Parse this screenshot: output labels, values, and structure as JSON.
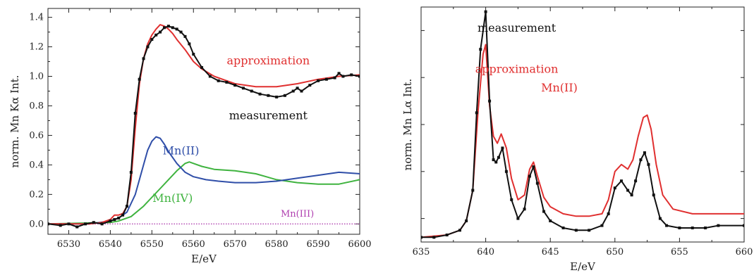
{
  "chart_data": [
    {
      "type": "line",
      "title": "",
      "xlabel": "E/eV",
      "ylabel": "norm. Mn Kα Int.",
      "xlim": [
        6525,
        6600
      ],
      "ylim": [
        -0.07,
        1.46
      ],
      "xticks": [
        "6530",
        "6540",
        "6550",
        "6560",
        "6570",
        "6580",
        "6590",
        "6600"
      ],
      "yticks": [
        "0.0",
        "0.2",
        "0.4",
        "0.6",
        "0.8",
        "1.0",
        "1.2",
        "1.4"
      ],
      "grid": false,
      "series": [
        {
          "name": "measurement",
          "color": "#111111",
          "markers": true,
          "x": [
            6525,
            6528,
            6530,
            6532,
            6534,
            6536,
            6538,
            6540,
            6541,
            6542,
            6543,
            6544,
            6545,
            6546,
            6547,
            6548,
            6549,
            6550,
            6551,
            6552,
            6553,
            6554,
            6555,
            6556,
            6557,
            6558,
            6559,
            6560,
            6562,
            6564,
            6566,
            6568,
            6570,
            6572,
            6574,
            6576,
            6578,
            6580,
            6582,
            6584,
            6585,
            6586,
            6588,
            6590,
            6592,
            6594,
            6595,
            6596,
            6598,
            6600
          ],
          "y": [
            0.0,
            -0.01,
            0.0,
            -0.02,
            0.0,
            0.01,
            0.0,
            0.02,
            0.03,
            0.04,
            0.06,
            0.12,
            0.35,
            0.75,
            0.98,
            1.12,
            1.2,
            1.25,
            1.28,
            1.3,
            1.33,
            1.34,
            1.33,
            1.32,
            1.3,
            1.27,
            1.22,
            1.15,
            1.06,
            1.0,
            0.97,
            0.96,
            0.94,
            0.92,
            0.9,
            0.88,
            0.87,
            0.86,
            0.87,
            0.9,
            0.92,
            0.9,
            0.94,
            0.97,
            0.98,
            0.99,
            1.02,
            1.0,
            1.01,
            1.0
          ]
        },
        {
          "name": "approximation",
          "color": "#e03030",
          "markers": false,
          "x": [
            6525,
            6530,
            6535,
            6538,
            6540,
            6541,
            6542,
            6543,
            6544,
            6545,
            6546,
            6547,
            6548,
            6549,
            6550,
            6551,
            6552,
            6553,
            6554,
            6555,
            6556,
            6558,
            6560,
            6562,
            6565,
            6568,
            6570,
            6575,
            6580,
            6585,
            6590,
            6595,
            6600
          ],
          "y": [
            0.0,
            0.0,
            0.0,
            0.01,
            0.03,
            0.06,
            0.06,
            0.07,
            0.12,
            0.3,
            0.65,
            0.95,
            1.12,
            1.22,
            1.28,
            1.32,
            1.35,
            1.34,
            1.32,
            1.29,
            1.25,
            1.18,
            1.1,
            1.05,
            1.0,
            0.97,
            0.95,
            0.93,
            0.93,
            0.95,
            0.98,
            1.0,
            1.01
          ]
        },
        {
          "name": "Mn(II)",
          "color": "#2f4ea8",
          "markers": false,
          "x": [
            6525,
            6535,
            6540,
            6542,
            6544,
            6546,
            6548,
            6549,
            6550,
            6551,
            6552,
            6553,
            6554,
            6556,
            6558,
            6560,
            6563,
            6566,
            6570,
            6575,
            6580,
            6585,
            6590,
            6595,
            6600
          ],
          "y": [
            0.0,
            0.0,
            0.02,
            0.04,
            0.08,
            0.2,
            0.4,
            0.5,
            0.56,
            0.59,
            0.58,
            0.54,
            0.49,
            0.41,
            0.35,
            0.32,
            0.3,
            0.29,
            0.28,
            0.28,
            0.29,
            0.31,
            0.33,
            0.35,
            0.34
          ]
        },
        {
          "name": "Mn(IV)",
          "color": "#3fb33f",
          "markers": false,
          "x": [
            6525,
            6540,
            6542,
            6545,
            6548,
            6550,
            6552,
            6554,
            6556,
            6558,
            6559,
            6560,
            6562,
            6565,
            6570,
            6575,
            6580,
            6585,
            6590,
            6595,
            6600
          ],
          "y": [
            0.0,
            0.01,
            0.02,
            0.05,
            0.12,
            0.18,
            0.24,
            0.3,
            0.36,
            0.41,
            0.42,
            0.41,
            0.39,
            0.37,
            0.36,
            0.34,
            0.3,
            0.28,
            0.27,
            0.27,
            0.3
          ]
        },
        {
          "name": "Mn(III)",
          "color": "#b040b0",
          "markers": false,
          "dotted": true,
          "x": [
            6525,
            6600
          ],
          "y": [
            0.0,
            0.0
          ]
        }
      ],
      "annotations": [
        {
          "text": "approximation",
          "color": "#e03030",
          "x": 6578,
          "y": 1.08
        },
        {
          "text": "measurement",
          "color": "#111111",
          "x": 6578,
          "y": 0.71
        },
        {
          "text": "Mn(II)",
          "color": "#2f4ea8",
          "x": 6557,
          "y": 0.47
        },
        {
          "text": "Mn(IV)",
          "color": "#3fb33f",
          "x": 6555,
          "y": 0.15
        },
        {
          "text": "Mn(III)",
          "color": "#b040b0",
          "x": 6585,
          "y": 0.05
        }
      ]
    },
    {
      "type": "line",
      "title": "",
      "xlabel": "E/eV",
      "ylabel": "norm. Mn Lα Int.",
      "xlim": [
        635,
        660
      ],
      "ylim": [
        0,
        1.0
      ],
      "xticks": [
        "635",
        "640",
        "645",
        "650",
        "655",
        "660"
      ],
      "yticks": [],
      "grid": false,
      "series": [
        {
          "name": "measurement",
          "color": "#111111",
          "markers": true,
          "x": [
            635,
            636,
            637,
            638,
            638.5,
            639,
            639.3,
            639.6,
            640,
            640.3,
            640.6,
            640.8,
            641,
            641.3,
            641.6,
            642,
            642.5,
            643,
            643.4,
            643.7,
            644,
            644.5,
            645,
            646,
            647,
            648,
            649,
            649.5,
            650,
            650.5,
            651,
            651.3,
            651.6,
            652,
            652.3,
            652.6,
            653,
            653.5,
            654,
            655,
            656,
            657,
            658,
            660
          ],
          "y": [
            0.02,
            0.02,
            0.03,
            0.05,
            0.09,
            0.22,
            0.55,
            0.82,
            0.98,
            0.6,
            0.35,
            0.34,
            0.36,
            0.4,
            0.3,
            0.18,
            0.1,
            0.14,
            0.28,
            0.32,
            0.25,
            0.13,
            0.09,
            0.06,
            0.05,
            0.05,
            0.07,
            0.12,
            0.23,
            0.26,
            0.22,
            0.2,
            0.26,
            0.35,
            0.38,
            0.33,
            0.2,
            0.1,
            0.07,
            0.06,
            0.06,
            0.06,
            0.07,
            0.07
          ]
        },
        {
          "name": "approximation",
          "color": "#e03030",
          "markers": false,
          "x": [
            635,
            637,
            638,
            638.5,
            639,
            639.4,
            639.8,
            640,
            640.3,
            640.6,
            640.9,
            641.2,
            641.6,
            642,
            642.5,
            643,
            643.4,
            643.7,
            644,
            644.5,
            645,
            646,
            647,
            648,
            649,
            649.5,
            650,
            650.5,
            651,
            651.4,
            651.8,
            652.2,
            652.5,
            652.8,
            653.2,
            653.7,
            654.5,
            656,
            658,
            660
          ],
          "y": [
            0.02,
            0.03,
            0.05,
            0.09,
            0.22,
            0.55,
            0.8,
            0.84,
            0.58,
            0.45,
            0.42,
            0.46,
            0.4,
            0.27,
            0.18,
            0.2,
            0.31,
            0.34,
            0.28,
            0.19,
            0.15,
            0.12,
            0.11,
            0.11,
            0.12,
            0.18,
            0.3,
            0.33,
            0.31,
            0.35,
            0.45,
            0.53,
            0.54,
            0.48,
            0.33,
            0.2,
            0.14,
            0.12,
            0.12,
            0.12
          ]
        }
      ],
      "annotations": [
        {
          "text": "measurement",
          "color": "#111111",
          "x": 642.4,
          "y": 0.895
        },
        {
          "text": "approximation",
          "color": "#e03030",
          "x": 642.4,
          "y": 0.72
        },
        {
          "text": "Mn(II)",
          "color": "#e03030",
          "x": 645.7,
          "y": 0.64
        }
      ]
    }
  ]
}
